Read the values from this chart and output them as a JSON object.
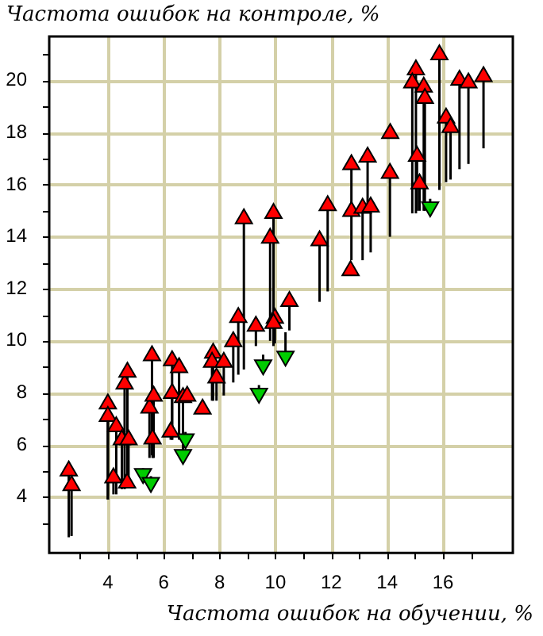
{
  "chart_data": {
    "type": "scatter",
    "xlabel": "Частота ошибок на обучении, %",
    "ylabel": "Частота ошибок на контроле, %",
    "xlim": [
      1.9,
      18.5
    ],
    "ylim": [
      1.85,
      21.7
    ],
    "xticks": [
      {
        "value": 3,
        "label": null
      },
      4,
      {
        "value": 5,
        "label": null
      },
      6,
      {
        "value": 7,
        "label": null
      },
      8,
      {
        "value": 9,
        "label": null
      },
      10,
      {
        "value": 11,
        "label": null
      },
      12,
      {
        "value": 13,
        "label": null
      },
      14,
      {
        "value": 15,
        "label": null
      },
      16,
      {
        "value": 17,
        "label": null
      }
    ],
    "yticks": [
      {
        "value": 3,
        "label": null
      },
      4,
      {
        "value": 5,
        "label": null
      },
      6,
      {
        "value": 7,
        "label": null
      },
      8,
      {
        "value": 9,
        "label": null
      },
      10,
      {
        "value": 11,
        "label": null
      },
      12,
      {
        "value": 13,
        "label": null
      },
      14,
      {
        "value": 15,
        "label": null
      },
      16,
      {
        "value": 17,
        "label": null
      },
      18,
      {
        "value": 19,
        "label": null
      },
      20,
      {
        "value": 21,
        "label": null
      }
    ],
    "grid": true,
    "marker": "triangle",
    "series": [
      {
        "color": "#ff0000",
        "x": [
          2.6,
          2.7,
          4.0,
          4.0,
          4.3,
          4.6,
          4.7,
          4.5,
          4.74,
          4.2,
          4.69,
          5.49,
          5.64,
          5.6,
          5.58,
          6.3,
          6.25,
          6.3,
          6.55,
          6.69,
          6.84,
          7.39,
          7.89,
          7.77,
          7.73,
          8.15,
          8.49,
          8.67,
          8.87,
          9.3,
          9.93,
          9.81,
          9.98,
          9.93,
          10.5,
          11.58,
          11.87,
          12.69,
          12.72,
          13.12,
          13.41,
          12.72,
          13.3,
          14.11,
          14.1,
          15.03,
          14.9,
          15.31,
          15.35,
          15.07,
          15.16,
          15.87,
          16.11,
          16.27,
          16.59,
          16.91,
          17.45
        ],
        "values": [
          5.0,
          4.44,
          7.58,
          7.1,
          6.7,
          8.34,
          8.8,
          6.2,
          6.2,
          4.74,
          4.54,
          7.42,
          7.88,
          6.23,
          9.43,
          7.98,
          6.5,
          9.24,
          8.97,
          7.82,
          7.88,
          7.38,
          8.58,
          9.53,
          9.18,
          9.18,
          9.97,
          10.9,
          14.7,
          10.57,
          14.9,
          13.95,
          10.87,
          10.67,
          11.52,
          13.85,
          15.2,
          12.7,
          14.98,
          15.1,
          15.15,
          16.78,
          17.07,
          17.97,
          16.44,
          20.42,
          19.92,
          19.76,
          19.32,
          17.1,
          16.04,
          21.0,
          18.57,
          18.2,
          20.02,
          19.92,
          20.16
        ],
        "errors": [
          [
            2.45,
            5.0
          ],
          [
            2.5,
            4.44
          ],
          [
            3.9,
            7.58
          ],
          [
            3.9,
            7.1
          ],
          [
            4.1,
            6.7
          ],
          [
            4.3,
            8.34
          ],
          [
            4.5,
            8.8
          ],
          [
            4.3,
            6.2
          ],
          [
            4.5,
            6.2
          ],
          [
            4.1,
            4.74
          ],
          [
            4.4,
            4.54
          ],
          [
            5.5,
            7.42
          ],
          [
            5.5,
            7.88
          ],
          [
            5.5,
            6.23
          ],
          [
            5.6,
            9.43
          ],
          [
            6.2,
            7.98
          ],
          [
            6.2,
            6.5
          ],
          [
            6.2,
            9.24
          ],
          [
            6.2,
            8.97
          ],
          [
            6.4,
            7.82
          ],
          null,
          null,
          [
            7.7,
            8.58
          ],
          [
            7.7,
            9.53
          ],
          [
            7.7,
            9.18
          ],
          [
            7.9,
            9.18
          ],
          [
            8.4,
            9.97
          ],
          [
            8.7,
            10.9
          ],
          [
            8.9,
            14.7
          ],
          [
            9.8,
            10.57
          ],
          [
            9.8,
            14.9
          ],
          [
            10.0,
            13.95
          ],
          [
            9.9,
            10.87
          ],
          [
            9.9,
            10.67
          ],
          [
            10.4,
            11.52
          ],
          [
            11.5,
            13.85
          ],
          [
            11.9,
            15.2
          ],
          null,
          [
            13.1,
            14.98
          ],
          [
            13.1,
            15.1
          ],
          [
            13.4,
            15.15
          ],
          [
            15.0,
            16.78
          ],
          [
            15.2,
            17.07
          ],
          null,
          [
            14.0,
            16.44
          ],
          [
            14.9,
            20.42
          ],
          [
            14.9,
            19.92
          ],
          [
            15.0,
            19.76
          ],
          [
            15.0,
            19.32
          ],
          [
            15.0,
            17.1
          ],
          [
            15.0,
            16.04
          ],
          [
            15.8,
            21.0
          ],
          [
            16.1,
            18.57
          ],
          [
            16.2,
            18.2
          ],
          [
            16.6,
            20.02
          ],
          [
            16.8,
            19.92
          ],
          [
            17.4,
            20.16
          ]
        ]
      },
      {
        "color": "#00cc00",
        "x": [
          5.26,
          5.54,
          6.78,
          6.69,
          9.41,
          9.56,
          10.36,
          15.54
        ],
        "values": [
          4.9,
          4.55,
          6.23,
          5.63,
          7.98,
          9.07,
          9.41,
          15.15
        ],
        "errors": [
          [
            4.9,
            5.1
          ],
          [
            4.55,
            4.8
          ],
          [
            6.23,
            6.5
          ],
          [
            5.63,
            6.2
          ],
          [
            7.98,
            8.3
          ],
          [
            9.07,
            9.47
          ],
          [
            9.41,
            10.33
          ],
          [
            15.15,
            15.46
          ]
        ]
      }
    ]
  }
}
